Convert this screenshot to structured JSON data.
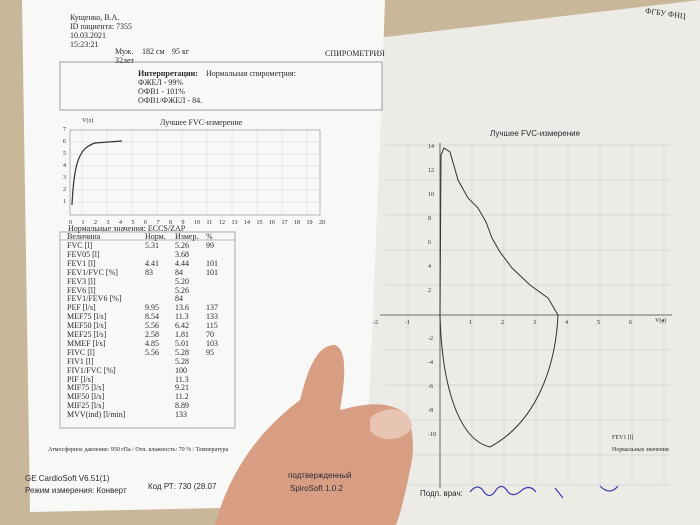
{
  "header": {
    "name": "Кущенко, В.А.",
    "patient_id": "ID пациента: 7355",
    "date": "10.03.2021",
    "time": "15:23:21",
    "sex": "Муж.",
    "height": "182 см",
    "weight": "95 кг",
    "age": "32лет",
    "title": "СПИРОМЕТРИЯ",
    "org": "ФГБУ ФНЦ"
  },
  "interpretation": {
    "label": "Интерпретации:",
    "summary": "Нормальная спирометрия:",
    "lines": [
      "ФЖЕЛ - 99%",
      "ОФВ1 - 101%",
      "ОФВ1/ФЖЕЛ - 84."
    ]
  },
  "small_chart": {
    "title": "Лучшее FVC-измерение",
    "y_label": "V(л)",
    "yticks": [
      1,
      2,
      3,
      4,
      5,
      6,
      7
    ],
    "xticks": [
      0,
      1,
      2,
      3,
      4,
      5,
      6,
      7,
      8,
      9,
      10,
      11,
      12,
      13,
      14,
      15,
      16,
      17,
      18,
      19,
      20
    ]
  },
  "norms": "Нормальные значения: ECCS/ZAP",
  "table": {
    "columns": [
      "Величина",
      "Норм.",
      "Измер.",
      "%"
    ],
    "rows": [
      {
        "name": "FVC [l]",
        "norm": "5.31",
        "measured": "5.26",
        "percent": "99"
      },
      {
        "name": "FEV05 [l]",
        "measured": "3.68"
      },
      {
        "name": "FEV1 [l]",
        "norm": "4.41",
        "measured": "4.44",
        "percent": "101"
      },
      {
        "name": "FEV1/FVC [%]",
        "norm": "83",
        "measured": "84",
        "percent": "101"
      },
      {
        "name": "FEV3 [l]",
        "measured": "5.20"
      },
      {
        "name": "FEV6 [l]",
        "measured": "5.26"
      },
      {
        "name": "FEV1/FEV6 [%]",
        "measured": "84"
      },
      {
        "name": "PEF [l/s]",
        "norm": "9.95",
        "measured": "13.6",
        "percent": "137"
      },
      {
        "name": "MEF75 [l/s]",
        "norm": "8.54",
        "measured": "11.3",
        "percent": "133"
      },
      {
        "name": "MEF50 [l/s]",
        "norm": "5.56",
        "measured": "6.42",
        "percent": "115"
      },
      {
        "name": "MEF25 [l/s]",
        "norm": "2.58",
        "measured": "1.81",
        "percent": "70"
      },
      {
        "name": "MMEF [l/s]",
        "norm": "4.85",
        "measured": "5.01",
        "percent": "103"
      },
      {
        "name": "FIVC [l]",
        "norm": "5.56",
        "measured": "5.28",
        "percent": "95"
      },
      {
        "name": "FIV1 [l]",
        "measured": "5.28"
      },
      {
        "name": "FIV1/FVC [%]",
        "measured": "100"
      },
      {
        "name": "PIF [l/s]",
        "measured": "11.3"
      },
      {
        "name": "MIF75 [l/s]",
        "measured": "9.21"
      },
      {
        "name": "MIF50 [l/s]",
        "measured": "11.2"
      },
      {
        "name": "MIF25 [l/s]",
        "measured": "8.89"
      },
      {
        "name": "MVV(ind) [l/min]",
        "measured": "133"
      }
    ]
  },
  "footer": {
    "conditions": "Атмосферное давление: 950 гПа / Отн. влажность: 70 % / Температура",
    "software": "GE CardioSoft V6.51(1)",
    "mode": "Режим измерения: Конверт",
    "code": "Код РТ: 730 (28.07",
    "confirmed": "подтвержденный",
    "spirosoft": "SpiroSoft 1.0.2",
    "signature": "Подп. врач:"
  },
  "big_chart": {
    "title": "Лучшее FVC-измерение",
    "x_label": "V(л)",
    "xticks": [
      -2,
      -1,
      1,
      2,
      3,
      4,
      5,
      6,
      7
    ],
    "yticks": [
      14,
      12,
      10,
      8,
      6,
      4,
      2,
      -2,
      -4,
      -6,
      -8,
      -10
    ],
    "legend": [
      "FEV1 [l]",
      "Нормальные значения"
    ]
  }
}
